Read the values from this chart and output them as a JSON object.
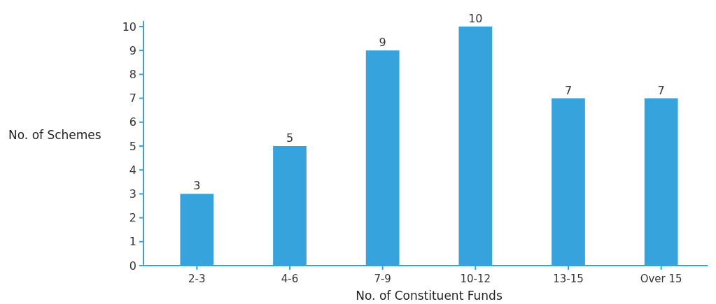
{
  "chart_data": {
    "type": "bar",
    "xlabel": "No. of Constituent Funds",
    "ylabel": "No. of Schemes",
    "categories": [
      "2-3",
      "4-6",
      "7-9",
      "10-12",
      "13-15",
      "Over 15"
    ],
    "values": [
      3,
      5,
      9,
      10,
      7,
      7
    ],
    "color": "#36a3dd",
    "ylim": [
      0,
      10
    ],
    "yticks": [
      0,
      1,
      2,
      3,
      4,
      5,
      6,
      7,
      8,
      9,
      10
    ],
    "grid": false,
    "data_labels": true
  }
}
